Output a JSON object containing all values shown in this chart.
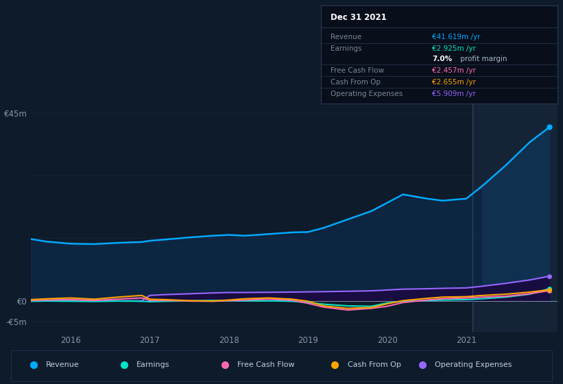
{
  "bg_color": "#0d1b2a",
  "chart_bg": "#0d1b2a",
  "highlight_bg": "#152336",
  "grid_color": "#1e3050",
  "text_color": "#8899aa",
  "title_color": "#ffffff",
  "ylim": [
    -7500000,
    50000000
  ],
  "xticks": [
    2016,
    2017,
    2018,
    2019,
    2020,
    2021
  ],
  "xlim_start": 2015.5,
  "xlim_end": 2022.15,
  "highlight_x_start": 2021.08,
  "revenue": {
    "label": "Revenue",
    "color": "#00aaff",
    "x": [
      2015.5,
      2015.7,
      2016.0,
      2016.3,
      2016.6,
      2016.9,
      2017.0,
      2017.2,
      2017.5,
      2017.8,
      2018.0,
      2018.2,
      2018.5,
      2018.8,
      2019.0,
      2019.2,
      2019.5,
      2019.8,
      2020.0,
      2020.2,
      2020.5,
      2020.7,
      2021.0,
      2021.2,
      2021.5,
      2021.8,
      2022.05
    ],
    "y": [
      14800000,
      14200000,
      13700000,
      13600000,
      13900000,
      14100000,
      14400000,
      14700000,
      15200000,
      15600000,
      15800000,
      15600000,
      16000000,
      16400000,
      16500000,
      17500000,
      19500000,
      21500000,
      23500000,
      25500000,
      24500000,
      24000000,
      24500000,
      27500000,
      32500000,
      38000000,
      41619000
    ]
  },
  "earnings": {
    "label": "Earnings",
    "color": "#00e5c8",
    "x": [
      2015.5,
      2015.7,
      2016.0,
      2016.3,
      2016.6,
      2016.9,
      2017.0,
      2017.2,
      2017.5,
      2017.8,
      2018.0,
      2018.2,
      2018.5,
      2018.8,
      2019.0,
      2019.2,
      2019.5,
      2019.8,
      2020.0,
      2020.2,
      2020.5,
      2020.7,
      2021.0,
      2021.2,
      2021.5,
      2021.8,
      2022.05
    ],
    "y": [
      -100000,
      -50000,
      -100000,
      -150000,
      -50000,
      -100000,
      -200000,
      -100000,
      0,
      100000,
      50000,
      0,
      0,
      -100000,
      -400000,
      -800000,
      -1200000,
      -1300000,
      -500000,
      -100000,
      100000,
      200000,
      300000,
      500000,
      900000,
      1600000,
      2925000
    ]
  },
  "free_cash_flow": {
    "label": "Free Cash Flow",
    "color": "#ff69b4",
    "x": [
      2015.5,
      2015.7,
      2016.0,
      2016.3,
      2016.6,
      2016.9,
      2017.0,
      2017.2,
      2017.5,
      2017.8,
      2018.0,
      2018.2,
      2018.5,
      2018.8,
      2019.0,
      2019.2,
      2019.5,
      2019.8,
      2020.0,
      2020.2,
      2020.5,
      2020.7,
      2021.0,
      2021.2,
      2021.5,
      2021.8,
      2022.05
    ],
    "y": [
      100000,
      200000,
      300000,
      100000,
      400000,
      700000,
      100000,
      100000,
      -50000,
      -100000,
      50000,
      200000,
      400000,
      150000,
      -600000,
      -1500000,
      -2200000,
      -1800000,
      -1300000,
      -400000,
      200000,
      500000,
      700000,
      900000,
      1100000,
      1700000,
      2457000
    ]
  },
  "cash_from_op": {
    "label": "Cash From Op",
    "color": "#ffa500",
    "x": [
      2015.5,
      2015.7,
      2016.0,
      2016.3,
      2016.6,
      2016.9,
      2017.0,
      2017.2,
      2017.5,
      2017.8,
      2018.0,
      2018.2,
      2018.5,
      2018.8,
      2019.0,
      2019.2,
      2019.5,
      2019.8,
      2020.0,
      2020.2,
      2020.5,
      2020.7,
      2021.0,
      2021.2,
      2021.5,
      2021.8,
      2022.05
    ],
    "y": [
      300000,
      500000,
      700000,
      400000,
      900000,
      1300000,
      400000,
      300000,
      50000,
      -50000,
      200000,
      500000,
      700000,
      400000,
      -100000,
      -1200000,
      -1800000,
      -1600000,
      -700000,
      50000,
      600000,
      900000,
      1000000,
      1300000,
      1600000,
      2100000,
      2655000
    ]
  },
  "operating_expenses": {
    "label": "Operating Expenses",
    "color": "#9966ff",
    "x": [
      2015.5,
      2015.7,
      2016.0,
      2016.3,
      2016.6,
      2016.9,
      2017.0,
      2017.2,
      2017.5,
      2017.8,
      2018.0,
      2018.2,
      2018.5,
      2018.8,
      2019.0,
      2019.2,
      2019.5,
      2019.8,
      2020.0,
      2020.2,
      2020.5,
      2020.7,
      2021.0,
      2021.2,
      2021.5,
      2021.8,
      2022.05
    ],
    "y": [
      0,
      0,
      0,
      0,
      0,
      0,
      1300000,
      1500000,
      1700000,
      1900000,
      2000000,
      2000000,
      2050000,
      2100000,
      2150000,
      2200000,
      2300000,
      2400000,
      2600000,
      2800000,
      2900000,
      3000000,
      3100000,
      3500000,
      4200000,
      5000000,
      5909000
    ]
  },
  "tooltip": {
    "title": "Dec 31 2021",
    "bg_color": "#080e1a",
    "border_color": "#2a3a55",
    "title_color": "#ffffff",
    "label_color": "#778899",
    "items": [
      {
        "label": "Revenue",
        "value": "€41.619m /yr",
        "value_color": "#00aaff"
      },
      {
        "label": "Earnings",
        "value": "€2.925m /yr",
        "value_color": "#00e5c8"
      },
      {
        "label": "",
        "value": "7.0%",
        "value2": " profit margin",
        "value_color": "#ffffff",
        "value2_color": "#aabbcc",
        "bold": true
      },
      {
        "label": "Free Cash Flow",
        "value": "€2.457m /yr",
        "value_color": "#ff69b4"
      },
      {
        "label": "Cash From Op",
        "value": "€2.655m /yr",
        "value_color": "#ffa500"
      },
      {
        "label": "Operating Expenses",
        "value": "€5.909m /yr",
        "value_color": "#9966ff"
      }
    ]
  },
  "legend_items": [
    {
      "label": "Revenue",
      "color": "#00aaff"
    },
    {
      "label": "Earnings",
      "color": "#00e5c8"
    },
    {
      "label": "Free Cash Flow",
      "color": "#ff69b4"
    },
    {
      "label": "Cash From Op",
      "color": "#ffa500"
    },
    {
      "label": "Operating Expenses",
      "color": "#9966ff"
    }
  ]
}
